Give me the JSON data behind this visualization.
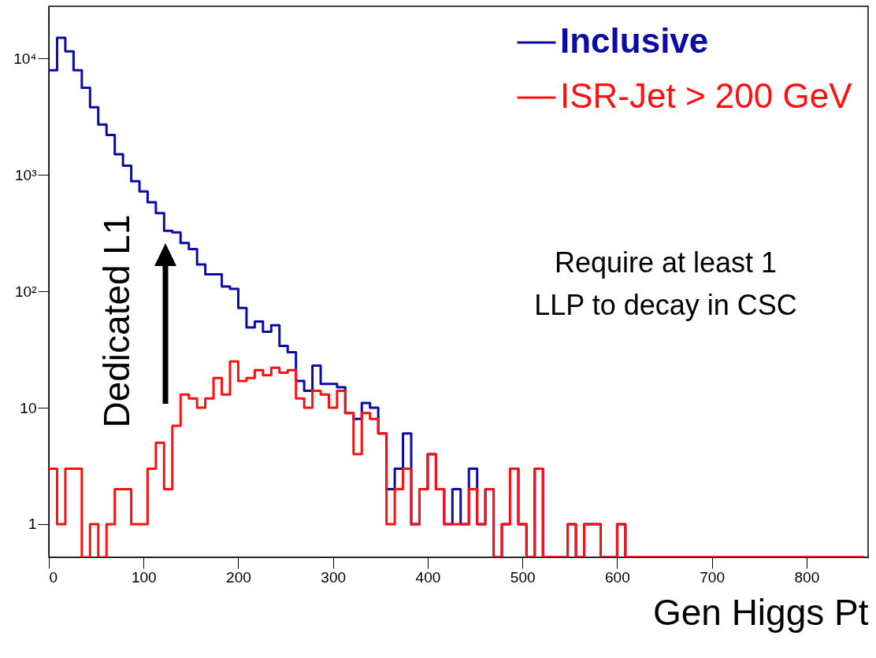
{
  "chart_data": {
    "type": "histogram",
    "xlabel": "Gen Higgs Pt",
    "annotations": [
      "Dedicated L1",
      "Require at least 1\nLLP to decay in CSC"
    ],
    "bins": [
      0,
      8.7,
      17.4,
      26.1,
      34.8,
      43.5,
      52.2,
      60.9,
      69.6,
      78.3,
      87.0,
      95.7,
      104.3,
      113.0,
      121.7,
      130.4,
      139.1,
      147.8,
      156.5,
      165.2,
      173.9,
      182.6,
      191.3,
      200.0,
      208.7,
      217.4,
      226.1,
      234.8,
      243.5,
      252.2,
      260.9,
      269.6,
      278.3,
      287.0,
      295.7,
      304.3,
      313.0,
      321.7,
      330.4,
      339.1,
      347.8,
      356.5,
      365.2,
      373.9,
      382.6,
      391.3,
      400.0,
      408.7,
      417.4,
      426.1,
      434.8,
      443.5,
      452.2,
      460.9,
      469.6,
      478.3,
      487.0,
      495.7,
      504.3,
      513.0,
      521.7,
      530.4,
      539.1,
      547.8,
      556.5,
      565.2,
      573.9,
      582.6,
      591.3,
      600.0,
      608.7,
      617.4,
      626.1,
      634.8,
      643.5,
      652.2,
      660.9,
      669.6,
      678.3,
      687.0,
      695.7,
      704.3,
      713.0,
      721.7,
      730.4,
      739.1,
      747.8,
      756.5,
      765.2,
      773.9,
      782.6,
      791.3,
      800.0,
      808.7,
      817.4,
      826.1,
      834.8,
      843.5,
      852.2,
      860.9
    ],
    "series": [
      {
        "name": "Inclusive",
        "color": "#0b0ba6",
        "values": [
          7900,
          15000,
          11500,
          7900,
          5600,
          3800,
          2700,
          2200,
          1500,
          1200,
          880,
          720,
          580,
          470,
          330,
          320,
          260,
          230,
          170,
          140,
          140,
          110,
          105,
          72,
          49,
          55,
          45,
          51,
          34,
          30,
          17,
          14,
          23,
          16,
          16,
          15,
          9,
          8,
          11,
          10,
          6,
          2,
          3,
          6,
          1,
          2,
          4,
          2,
          1,
          2,
          1,
          3,
          1,
          2,
          null,
          1,
          3,
          1,
          null,
          3,
          null,
          null,
          null,
          1,
          null,
          1,
          1,
          null,
          null,
          1,
          null,
          null,
          null,
          null,
          null,
          null,
          null,
          null,
          null,
          null,
          null,
          null,
          null,
          null,
          null,
          null,
          null,
          null,
          null,
          null,
          null,
          null,
          null,
          null,
          null,
          null,
          null,
          null,
          null
        ]
      },
      {
        "name": "ISR-Jet > 200 GeV",
        "color": "#ff1010",
        "values": [
          3,
          1,
          3,
          3,
          null,
          1,
          null,
          1,
          2,
          2,
          1,
          1,
          3,
          5,
          2,
          7,
          13,
          12,
          10,
          12,
          18,
          13,
          25,
          17,
          18,
          21,
          19,
          22,
          20,
          21,
          12,
          10,
          14,
          13,
          10,
          14,
          9,
          4,
          9,
          8,
          6,
          1,
          2,
          3,
          1,
          2,
          4,
          2,
          1,
          1,
          1,
          2,
          1,
          2,
          null,
          1,
          3,
          1,
          null,
          3,
          null,
          null,
          null,
          1,
          null,
          1,
          1,
          null,
          null,
          1,
          null,
          null,
          null,
          null,
          null,
          null,
          null,
          null,
          null,
          null,
          null,
          null,
          null,
          null,
          null,
          null,
          null,
          null,
          null,
          null,
          null,
          null,
          null,
          null,
          null,
          null,
          null,
          null,
          null
        ]
      }
    ],
    "xlim": [
      0,
      865
    ],
    "xticks": [
      0,
      100,
      200,
      300,
      400,
      500,
      600,
      700,
      800
    ],
    "ylim": [
      0.52,
      28000
    ],
    "log": true,
    "yticks": [
      1,
      10,
      {
        "value": 100,
        "label": "10²"
      },
      {
        "value": 1000,
        "label": "10³"
      },
      {
        "value": 10000,
        "label": "10⁴"
      }
    ],
    "legend": "top right"
  }
}
